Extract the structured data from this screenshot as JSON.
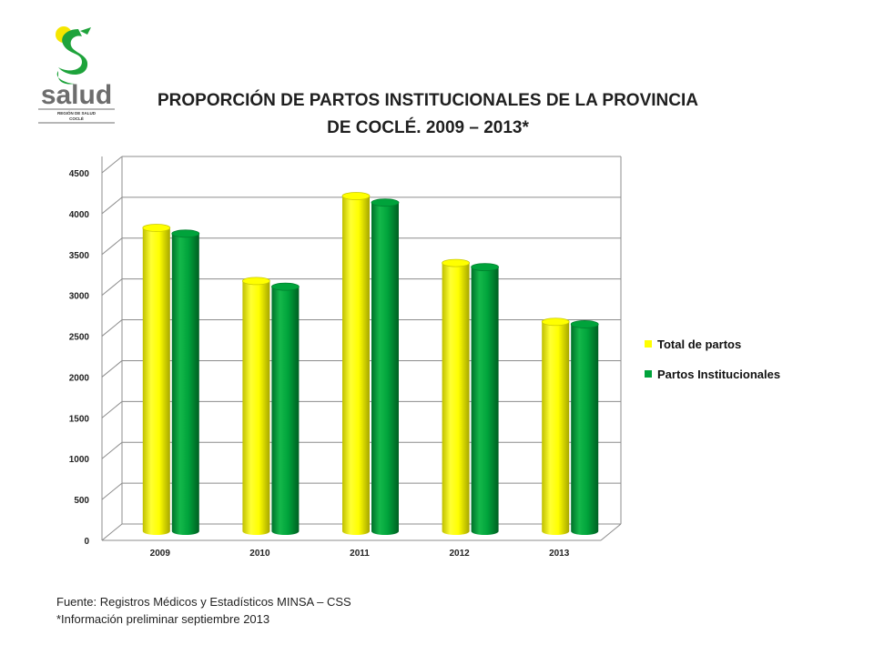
{
  "logo": {
    "text": "salud",
    "subtitle_1": "REGIÓN DE SALUD",
    "subtitle_2": "COCLÉ"
  },
  "title_line1": "PROPORCIÓN DE PARTOS INSTITUCIONALES DE LA PROVINCIA",
  "title_line2": "DE COCLÉ. 2009 – 2013*",
  "chart_data": {
    "type": "bar",
    "style": "3d-cylinder",
    "categories": [
      "2009",
      "2010",
      "2011",
      "2012",
      "2013"
    ],
    "series": [
      {
        "name": "Total de partos",
        "color": "#ffff00",
        "values": [
          3670,
          3020,
          4060,
          3240,
          2520
        ]
      },
      {
        "name": "Partos Institucionales",
        "color": "#00a33b",
        "values": [
          3600,
          2950,
          3980,
          3190,
          2490
        ]
      }
    ],
    "yticks": [
      0,
      500,
      1000,
      1500,
      2000,
      2500,
      3000,
      3500,
      4000,
      4500
    ],
    "ylim": [
      0,
      4500
    ],
    "grid": true,
    "legend": "right"
  },
  "footer": {
    "source": "Fuente: Registros Médicos y Estadísticos MINSA – CSS",
    "note": "*Información preliminar septiembre 2013"
  }
}
